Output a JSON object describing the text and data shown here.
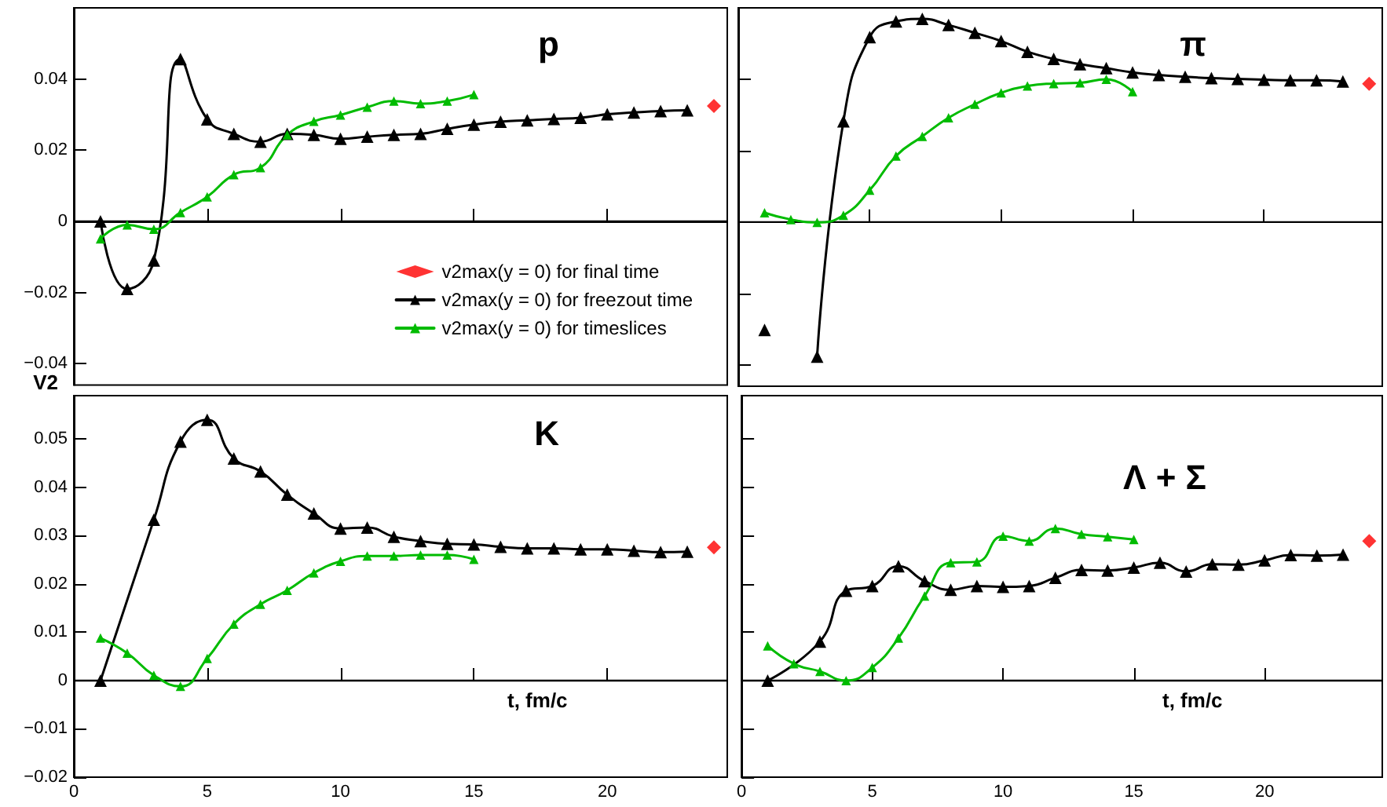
{
  "chart_data": [
    {
      "type": "line",
      "title": "p",
      "ylabel": "V2",
      "xlim": [
        0,
        24.5
      ],
      "ylim": [
        -0.046,
        0.06
      ],
      "xticks": [
        0,
        5,
        10,
        15,
        20
      ],
      "yticks": [
        {
          "value": -0.04,
          "label": "−0.04"
        },
        {
          "value": -0.02,
          "label": "−0.02"
        },
        0,
        0.02,
        0.04
      ],
      "tick_labels": "y",
      "legend": "bottom right",
      "ref_lines": [
        {
          "axis": "y",
          "value": 0
        }
      ],
      "series": [
        {
          "name": "v2max(y = 0) for final time",
          "type": "scatter",
          "marker": "diamond",
          "color": "#ff0000",
          "x": [
            24
          ],
          "values": [
            0.0324
          ]
        },
        {
          "name": "v2max(y = 0) for freezout time",
          "type": "line",
          "marker": "triangle",
          "color": "#000000",
          "x": [
            1,
            2,
            3,
            4,
            5,
            6,
            7,
            8,
            9,
            10,
            11,
            12,
            13,
            14,
            15,
            16,
            17,
            18,
            19,
            20,
            21,
            22,
            23
          ],
          "values": [
            0,
            -0.019,
            -0.011,
            0.0456,
            0.0287,
            0.0246,
            0.0224,
            0.0246,
            0.0243,
            0.0232,
            0.0238,
            0.0243,
            0.0246,
            0.026,
            0.0272,
            0.028,
            0.0284,
            0.0288,
            0.0291,
            0.0301,
            0.0306,
            0.031,
            0.0312
          ]
        },
        {
          "name": "v2max(y = 0) for timeslices",
          "type": "line",
          "marker": "triangle",
          "color": "#00bb00",
          "x": [
            1,
            2,
            3,
            4,
            5,
            6,
            7,
            8,
            9,
            10,
            11,
            12,
            13,
            14,
            15
          ],
          "values": [
            -0.0049,
            -0.001,
            -0.0022,
            0.0025,
            0.0069,
            0.0131,
            0.0151,
            0.0243,
            0.0281,
            0.0299,
            0.0321,
            0.0338,
            0.0331,
            0.0338,
            0.0356
          ]
        }
      ]
    },
    {
      "type": "line",
      "title": "π",
      "xlim": [
        0,
        24.5
      ],
      "ylim": [
        -0.046,
        0.06
      ],
      "xticks": [
        0,
        5,
        10,
        15,
        20
      ],
      "yticks": [
        {
          "value": -0.04,
          "label": null
        },
        {
          "value": -0.02,
          "label": null
        },
        0,
        0.02,
        0.04
      ],
      "tick_labels": false,
      "ref_lines": [
        {
          "axis": "y",
          "value": 0
        }
      ],
      "series": [
        {
          "type": "scatter",
          "marker": "diamond",
          "color": "#ff0000",
          "x": [
            24
          ],
          "values": [
            0.0387
          ]
        },
        {
          "type": "line",
          "marker": "triangle",
          "color": "#000000",
          "x": [
            1,
            2,
            3,
            4,
            5,
            6,
            7,
            8,
            9,
            10,
            11,
            12,
            13,
            14,
            15,
            16,
            17,
            18,
            19,
            20,
            21,
            22,
            23
          ],
          "values": [
            -0.0302,
            null,
            -0.0377,
            0.0282,
            0.0518,
            0.0562,
            0.0569,
            0.0552,
            0.053,
            0.0507,
            0.0477,
            0.0457,
            0.0442,
            0.0431,
            0.0419,
            0.0412,
            0.0407,
            0.0403,
            0.0401,
            0.0399,
            0.0397,
            0.0397,
            0.0394
          ]
        },
        {
          "type": "line",
          "marker": "triangle",
          "color": "#00bb00",
          "x": [
            1,
            2,
            3,
            4,
            5,
            6,
            7,
            8,
            9,
            10,
            11,
            12,
            13,
            14,
            15
          ],
          "values": [
            0.0026,
            0.0007,
            -0.0001,
            0.0019,
            0.0089,
            0.0185,
            0.024,
            0.0292,
            0.033,
            0.0362,
            0.0381,
            0.0388,
            0.039,
            0.04,
            0.0365
          ]
        }
      ]
    },
    {
      "type": "line",
      "title": "K",
      "xlabel": "t, fm/c",
      "xlim": [
        0,
        24.5
      ],
      "ylim": [
        -0.02,
        0.059
      ],
      "xticks": [
        0,
        5,
        10,
        15,
        20
      ],
      "yticks": [
        {
          "value": -0.02,
          "label": "−0.02"
        },
        {
          "value": -0.01,
          "label": "−0.01"
        },
        0,
        0.01,
        0.02,
        0.03,
        0.04,
        0.05
      ],
      "ref_lines": [
        {
          "axis": "y",
          "value": 0
        }
      ],
      "series": [
        {
          "type": "scatter",
          "marker": "diamond",
          "color": "#ff0000",
          "x": [
            24
          ],
          "values": [
            0.0276
          ]
        },
        {
          "type": "line",
          "marker": "triangle",
          "color": "#000000",
          "x": [
            1,
            3,
            4,
            5,
            6,
            7,
            8,
            9,
            10,
            11,
            12,
            13,
            14,
            15,
            16,
            17,
            18,
            19,
            20,
            21,
            22,
            23
          ],
          "values": [
            0,
            0.0333,
            0.0495,
            0.054,
            0.046,
            0.0433,
            0.0385,
            0.0346,
            0.0315,
            0.0317,
            0.0298,
            0.0289,
            0.0283,
            0.0282,
            0.0277,
            0.0274,
            0.0274,
            0.0272,
            0.0272,
            0.0269,
            0.0266,
            0.0267
          ]
        },
        {
          "type": "line",
          "marker": "triangle",
          "color": "#00bb00",
          "x": [
            1,
            2,
            3,
            4,
            5,
            6,
            7,
            8,
            9,
            10,
            11,
            12,
            13,
            14,
            15
          ],
          "values": [
            0.0088,
            0.0057,
            0.0011,
            -0.0012,
            0.0046,
            0.0117,
            0.0158,
            0.0187,
            0.0223,
            0.0247,
            0.0258,
            0.0258,
            0.026,
            0.026,
            0.0251
          ]
        }
      ]
    },
    {
      "type": "line",
      "title": "Λ + Σ",
      "xlabel": "t, fm/c",
      "xlim": [
        0,
        24.5
      ],
      "ylim": [
        -0.02,
        0.059
      ],
      "xticks": [
        0,
        5,
        10,
        15,
        20
      ],
      "yticks": [
        {
          "value": -0.02,
          "label": null
        },
        {
          "value": -0.01,
          "label": null
        },
        0,
        0.01,
        0.02,
        0.03,
        0.04,
        0.05
      ],
      "tick_labels": "x",
      "ref_lines": [
        {
          "axis": "y",
          "value": 0
        }
      ],
      "series": [
        {
          "type": "scatter",
          "marker": "diamond",
          "color": "#ff0000",
          "x": [
            24
          ],
          "values": [
            0.0289
          ]
        },
        {
          "type": "line",
          "marker": "triangle",
          "color": "#000000",
          "x": [
            1,
            3,
            4,
            5,
            6,
            7,
            8,
            9,
            10,
            11,
            12,
            13,
            14,
            15,
            16,
            17,
            18,
            19,
            20,
            21,
            22,
            23
          ],
          "values": [
            0,
            0.0081,
            0.0186,
            0.0196,
            0.0237,
            0.0206,
            0.0188,
            0.0196,
            0.0194,
            0.0196,
            0.0213,
            0.0229,
            0.0228,
            0.0234,
            0.0244,
            0.0226,
            0.0241,
            0.024,
            0.0249,
            0.026,
            0.0259,
            0.0261
          ]
        },
        {
          "type": "line",
          "marker": "triangle",
          "color": "#00bb00",
          "x": [
            1,
            2,
            3,
            4,
            5,
            6,
            7,
            8,
            9,
            10,
            11,
            12,
            13,
            14,
            15
          ],
          "values": [
            0.0072,
            0.0035,
            0.0019,
            0,
            0.0027,
            0.0088,
            0.0175,
            0.0244,
            0.0246,
            0.0299,
            0.0289,
            0.0315,
            0.0303,
            0.0298,
            0.0292
          ]
        }
      ]
    }
  ]
}
